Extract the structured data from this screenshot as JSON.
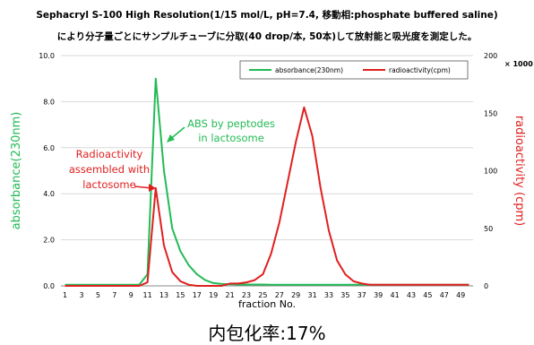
{
  "caption_line1": "Sephacryl S-100 High Resolution(1/15 mol/L, pH=7.4, 移動相:phosphate buffered saline)",
  "caption_line2": "により分子量ごとにサンプルチューブに分取(40 drop/本, 50本)して放射能と吸光度を測定した。",
  "footer_text": "内包化率:17%",
  "colors": {
    "absorbance": "#22bb55",
    "radioactivity": "#e02020",
    "ann_green": "#22bb55",
    "ann_red": "#e02020"
  },
  "chart_data": {
    "type": "line",
    "xlabel": "fraction No.",
    "ylabel": "absorbance(230nm)",
    "y2label": "radioactivity (cpm)",
    "y2unit": "× 1000",
    "xlim": [
      1,
      50
    ],
    "ylim": [
      0,
      10
    ],
    "y2lim": [
      0,
      200
    ],
    "x_ticks": [
      1,
      3,
      5,
      7,
      9,
      11,
      13,
      15,
      17,
      19,
      21,
      23,
      25,
      27,
      29,
      31,
      33,
      35,
      37,
      39,
      41,
      43,
      45,
      47,
      49
    ],
    "y_ticks": [
      0,
      2,
      4,
      6,
      8,
      10
    ],
    "y_tick_labels": [
      "0.0",
      "2.0",
      "4.0",
      "6.0",
      "8.0",
      "10.0"
    ],
    "y2_ticks": [
      0,
      50,
      100,
      150,
      200
    ],
    "y2_tick_labels": [
      "0",
      "50",
      "100",
      "150",
      "200"
    ],
    "grid": "horizontal",
    "legend_position": "top-right",
    "x": [
      1,
      2,
      3,
      4,
      5,
      6,
      7,
      8,
      9,
      10,
      11,
      12,
      13,
      14,
      15,
      16,
      17,
      18,
      19,
      20,
      21,
      22,
      23,
      24,
      25,
      26,
      27,
      28,
      29,
      30,
      31,
      32,
      33,
      34,
      35,
      36,
      37,
      38,
      39,
      40,
      41,
      42,
      43,
      44,
      45,
      46,
      47,
      48,
      49,
      50
    ],
    "series": [
      {
        "name": "absorbance(230nm)",
        "axis": "left",
        "values": [
          0.05,
          0.05,
          0.05,
          0.05,
          0.05,
          0.05,
          0.05,
          0.05,
          0.05,
          0.05,
          0.5,
          9.0,
          5.0,
          2.5,
          1.5,
          0.9,
          0.5,
          0.25,
          0.12,
          0.08,
          0.07,
          0.06,
          0.06,
          0.06,
          0.06,
          0.05,
          0.05,
          0.05,
          0.05,
          0.05,
          0.05,
          0.05,
          0.05,
          0.05,
          0.05,
          0.05,
          0.05,
          0.05,
          0.05,
          0.05,
          0.05,
          0.05,
          0.05,
          0.05,
          0.05,
          0.05,
          0.05,
          0.05,
          0.05,
          0.05
        ]
      },
      {
        "name": "radioactivity(cpm)",
        "axis": "right",
        "values": [
          0,
          0,
          0,
          0,
          0,
          0,
          0,
          0,
          0,
          0,
          3,
          85,
          35,
          12,
          4,
          1,
          0,
          0,
          0,
          0,
          2,
          2,
          3,
          5,
          10,
          28,
          55,
          90,
          125,
          155,
          130,
          85,
          48,
          22,
          10,
          4,
          2,
          1,
          1,
          1,
          1,
          1,
          1,
          1,
          1,
          1,
          1,
          1,
          1,
          1
        ]
      }
    ],
    "annotations": [
      {
        "text_lines": [
          "ABS by peptodes",
          "in lactosome"
        ],
        "color": "green"
      },
      {
        "text_lines": [
          "Radioactivity",
          "assembled with",
          "lactosome"
        ],
        "color": "red"
      }
    ]
  }
}
